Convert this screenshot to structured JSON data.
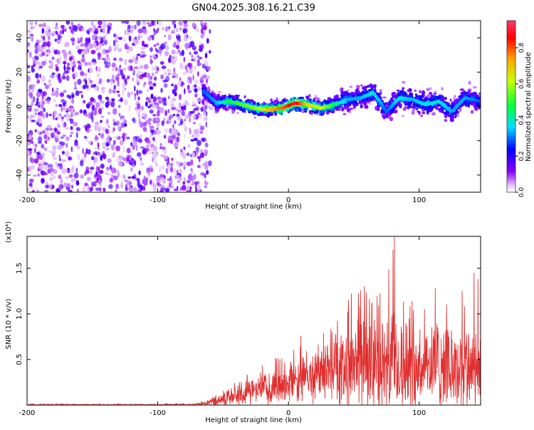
{
  "title": "GN04.2025.308.16.21.C39",
  "chart_data": [
    {
      "type": "heatmap",
      "name": "spectrogram",
      "xlabel": "Height of straight line (km)",
      "ylabel": "Frequency (Hz)",
      "xlim": [
        -200,
        147
      ],
      "ylim": [
        -50,
        50
      ],
      "x_ticks": [
        -200,
        -100,
        0,
        100
      ],
      "y_ticks": [
        -40,
        -20,
        0,
        20,
        40
      ],
      "grid": false,
      "noise_region_x": [
        -200,
        -60
      ],
      "ridge": {
        "x": [
          -65,
          -55,
          -45,
          -35,
          -25,
          -15,
          -5,
          5,
          15,
          25,
          35,
          45,
          55,
          65,
          75,
          85,
          95,
          105,
          115,
          125,
          135,
          147
        ],
        "freq": [
          9,
          2,
          3,
          1,
          -1,
          -2,
          -1,
          2,
          1,
          -1,
          1,
          4,
          5,
          8,
          -3,
          5,
          4,
          1,
          3,
          -3,
          5,
          3
        ],
        "amplitude": [
          0.3,
          0.35,
          0.5,
          0.55,
          0.6,
          0.75,
          0.82,
          0.95,
          0.7,
          0.65,
          0.5,
          0.35,
          0.35,
          0.4,
          0.3,
          0.4,
          0.35,
          0.4,
          0.4,
          0.35,
          0.35,
          0.3
        ]
      },
      "colorbar": {
        "label": "Normalized spectral amplitude",
        "range": [
          0,
          0.95
        ],
        "ticks": [
          "0.0",
          "0.2",
          "0.4",
          "0.6",
          "0.8"
        ],
        "tick_values": [
          0,
          0.2,
          0.4,
          0.6,
          0.8
        ],
        "placement": "right"
      }
    },
    {
      "type": "line",
      "name": "snr",
      "xlabel": "Height of straight line (km)",
      "ylabel": "SNR (10 * v/v)",
      "y_multiplier": "(x10⁴)",
      "xlim": [
        -200,
        147
      ],
      "ylim": [
        0,
        1.85
      ],
      "x_ticks": [
        -200,
        -100,
        0,
        100
      ],
      "y_ticks": [
        "0.5",
        "1.0",
        "1.5"
      ],
      "y_tick_values": [
        0.5,
        1.0,
        1.5
      ],
      "color": "#e03030",
      "envelope": {
        "x": [
          -200,
          -100,
          -70,
          -60,
          -50,
          -40,
          -30,
          -20,
          -10,
          0,
          10,
          20,
          30,
          40,
          50,
          60,
          70,
          80,
          90,
          100,
          110,
          120,
          130,
          140,
          147
        ],
        "baseline": [
          0.0,
          0.0,
          0.005,
          0.03,
          0.06,
          0.09,
          0.12,
          0.15,
          0.18,
          0.22,
          0.26,
          0.3,
          0.33,
          0.35,
          0.37,
          0.37,
          0.36,
          0.37,
          0.37,
          0.37,
          0.36,
          0.36,
          0.36,
          0.37,
          0.37
        ],
        "amplitude": [
          0.02,
          0.02,
          0.02,
          0.05,
          0.1,
          0.13,
          0.16,
          0.18,
          0.22,
          0.25,
          0.3,
          0.35,
          0.45,
          0.5,
          0.6,
          0.55,
          0.65,
          0.6,
          0.6,
          0.55,
          0.55,
          0.5,
          0.55,
          0.55,
          0.55
        ]
      },
      "peaks": [
        {
          "x": 81,
          "y": 1.84
        },
        {
          "x": 80,
          "y": 1.7
        },
        {
          "x": 48,
          "y": 1.22
        },
        {
          "x": 58,
          "y": 1.3
        },
        {
          "x": 70,
          "y": 1.22
        },
        {
          "x": 93,
          "y": 1.08
        },
        {
          "x": 121,
          "y": 1.1
        },
        {
          "x": 142,
          "y": 1.45
        },
        {
          "x": 145,
          "y": 1.38
        },
        {
          "x": 64,
          "y": 1.12
        },
        {
          "x": 104,
          "y": 1.05
        },
        {
          "x": 133,
          "y": 1.25
        },
        {
          "x": 46,
          "y": 1.15
        }
      ]
    }
  ]
}
